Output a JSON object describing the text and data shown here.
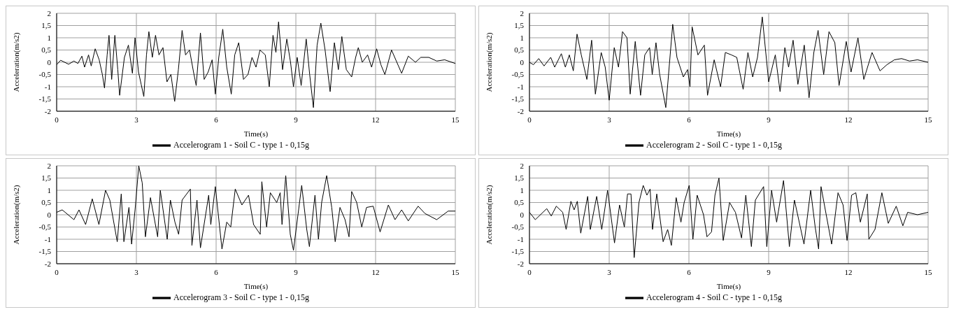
{
  "chart_data": [
    {
      "type": "line",
      "xlabel": "Time(s)",
      "ylabel": "Acceleration(m/s2)",
      "xlim": [
        0,
        15
      ],
      "xticks": [
        0,
        3,
        6,
        9,
        12,
        15
      ],
      "ylim": [
        -2,
        2
      ],
      "yticks": [
        {
          "value": -2,
          "label": "-2"
        },
        {
          "value": -1.5,
          "label": "-1,5"
        },
        {
          "value": -1,
          "label": "-1"
        },
        {
          "value": -0.5,
          "label": "-0,5"
        },
        {
          "value": 0,
          "label": "0"
        },
        {
          "value": 0.5,
          "label": "0,5"
        },
        {
          "value": 1,
          "label": "1"
        },
        {
          "value": 1.5,
          "label": "1,5"
        },
        {
          "value": 2,
          "label": "2"
        }
      ],
      "grid": true,
      "legend": "bottom",
      "marker": "none",
      "line_style": "solid",
      "series": [
        {
          "name": "Accelerogram 1 - Soil C - type 1 - 0,15g",
          "color": "#000000",
          "x": [
            0,
            0.15,
            0.45,
            0.65,
            0.8,
            0.95,
            1.05,
            1.2,
            1.3,
            1.45,
            1.6,
            1.72,
            1.8,
            1.9,
            1.97,
            2.07,
            2.19,
            2.3,
            2.37,
            2.55,
            2.7,
            2.85,
            2.95,
            3.08,
            3.18,
            3.28,
            3.38,
            3.47,
            3.6,
            3.72,
            3.85,
            4.0,
            4.15,
            4.3,
            4.44,
            4.58,
            4.72,
            4.85,
            5.0,
            5.15,
            5.25,
            5.41,
            5.55,
            5.7,
            5.85,
            5.97,
            6.1,
            6.25,
            6.4,
            6.57,
            6.7,
            6.85,
            7.03,
            7.2,
            7.35,
            7.5,
            7.65,
            7.85,
            8.0,
            8.14,
            8.25,
            8.35,
            8.5,
            8.66,
            8.8,
            8.91,
            9.05,
            9.2,
            9.39,
            9.52,
            9.66,
            9.8,
            9.94,
            10.1,
            10.2,
            10.29,
            10.45,
            10.6,
            10.73,
            10.9,
            11.1,
            11.25,
            11.35,
            11.5,
            11.7,
            11.85,
            12.04,
            12.2,
            12.35,
            12.6,
            12.8,
            12.98,
            13.23,
            13.5,
            13.7,
            14.0,
            14.3,
            14.6,
            15
          ],
          "values": [
            -0.1,
            0.08,
            -0.08,
            0.05,
            -0.05,
            0.25,
            -0.2,
            0.3,
            -0.15,
            0.55,
            0.1,
            -0.5,
            -1.05,
            0.3,
            1.1,
            -0.7,
            1.1,
            -0.3,
            -1.35,
            0.2,
            0.7,
            -0.45,
            1.0,
            -0.4,
            -0.9,
            -1.4,
            0.3,
            1.25,
            0.2,
            1.1,
            0.3,
            0.6,
            -0.8,
            -0.5,
            -1.6,
            -0.3,
            1.3,
            0.3,
            0.5,
            -0.4,
            -0.95,
            1.2,
            -0.7,
            -0.4,
            0.1,
            -1.3,
            0.2,
            1.35,
            -0.2,
            -1.3,
            0.3,
            0.8,
            -0.7,
            -0.5,
            0.2,
            -0.2,
            0.5,
            0.3,
            -1.0,
            1.1,
            0.4,
            1.65,
            -0.3,
            0.95,
            0.0,
            -1.0,
            0.2,
            -0.95,
            0.95,
            -0.5,
            -1.85,
            0.7,
            1.6,
            0.5,
            -0.4,
            -1.2,
            0.8,
            -0.3,
            1.05,
            -0.3,
            -0.6,
            0.2,
            0.6,
            0.0,
            0.3,
            -0.2,
            0.55,
            -0.1,
            -0.5,
            0.5,
            0.0,
            -0.45,
            0.25,
            0.0,
            0.2,
            0.2,
            0.05,
            0.1,
            -0.05
          ]
        }
      ]
    },
    {
      "type": "line",
      "xlabel": "Time(s)",
      "ylabel": "Acceleration(m/s2)",
      "xlim": [
        0,
        15
      ],
      "xticks": [
        0,
        3,
        6,
        9,
        12,
        15
      ],
      "ylim": [
        -2,
        2
      ],
      "yticks": [
        {
          "value": -2,
          "label": "-2"
        },
        {
          "value": -1.5,
          "label": "-1,5"
        },
        {
          "value": -1,
          "label": "-1"
        },
        {
          "value": -0.5,
          "label": "-0,5"
        },
        {
          "value": 0,
          "label": "0"
        },
        {
          "value": 0.5,
          "label": "0,5"
        },
        {
          "value": 1,
          "label": "1"
        },
        {
          "value": 1.5,
          "label": "1,5"
        },
        {
          "value": 2,
          "label": "2"
        }
      ],
      "grid": true,
      "legend": "bottom",
      "marker": "none",
      "line_style": "solid",
      "series": [
        {
          "name": "Accelerogram 2 - Soil C - type 1 - 0,15g",
          "color": "#000000",
          "x": [
            0,
            0.15,
            0.35,
            0.55,
            0.8,
            0.95,
            1.2,
            1.35,
            1.5,
            1.65,
            1.79,
            1.95,
            2.16,
            2.34,
            2.48,
            2.7,
            2.85,
            3.0,
            3.19,
            3.35,
            3.5,
            3.67,
            3.79,
            3.98,
            4.18,
            4.34,
            4.52,
            4.62,
            4.76,
            4.9,
            5.13,
            5.39,
            5.55,
            5.79,
            5.95,
            6.04,
            6.12,
            6.34,
            6.58,
            6.7,
            6.95,
            7.19,
            7.37,
            7.6,
            7.8,
            8.04,
            8.22,
            8.4,
            8.58,
            8.76,
            9.0,
            9.25,
            9.43,
            9.61,
            9.75,
            9.92,
            10.1,
            10.34,
            10.52,
            10.7,
            10.86,
            11.07,
            11.27,
            11.49,
            11.65,
            11.92,
            12.1,
            12.36,
            12.58,
            12.89,
            13.19,
            13.45,
            13.73,
            14.0,
            14.3,
            14.6,
            15
          ],
          "values": [
            0.0,
            -0.1,
            0.15,
            -0.15,
            0.2,
            -0.2,
            0.35,
            -0.2,
            0.3,
            -0.35,
            1.15,
            0.3,
            -0.7,
            0.9,
            -1.3,
            0.4,
            -0.2,
            -1.55,
            0.6,
            -0.2,
            1.25,
            1.0,
            -1.3,
            0.85,
            -1.35,
            0.3,
            0.6,
            -0.5,
            0.8,
            -0.5,
            -1.85,
            1.55,
            0.2,
            -0.6,
            -0.3,
            -1.0,
            1.45,
            0.3,
            0.7,
            -1.35,
            0.1,
            -1.0,
            0.4,
            0.3,
            0.2,
            -1.1,
            0.4,
            -0.6,
            0.2,
            1.85,
            -0.8,
            0.3,
            -1.2,
            0.6,
            -0.2,
            0.9,
            -0.9,
            0.7,
            -1.45,
            0.4,
            1.3,
            -0.5,
            1.25,
            0.8,
            -0.95,
            0.85,
            -0.4,
            1.0,
            -0.7,
            0.4,
            -0.35,
            -0.1,
            0.1,
            0.15,
            0.05,
            0.1,
            0.0
          ]
        }
      ]
    },
    {
      "type": "line",
      "xlabel": "Time(s)",
      "ylabel": "Acceleration(m/s2)",
      "xlim": [
        0,
        15
      ],
      "xticks": [
        0,
        3,
        6,
        9,
        12,
        15
      ],
      "ylim": [
        -2,
        2
      ],
      "yticks": [
        {
          "value": -2,
          "label": "-2"
        },
        {
          "value": -1.5,
          "label": "-1,5"
        },
        {
          "value": -1,
          "label": "-1"
        },
        {
          "value": -0.5,
          "label": "-0,5"
        },
        {
          "value": 0,
          "label": "0"
        },
        {
          "value": 0.5,
          "label": "0,5"
        },
        {
          "value": 1,
          "label": "1"
        },
        {
          "value": 1.5,
          "label": "1,5"
        },
        {
          "value": 2,
          "label": "2"
        }
      ],
      "grid": true,
      "legend": "bottom",
      "marker": "none",
      "line_style": "solid",
      "series": [
        {
          "name": "Accelerogram 3 - Soil C - type 1 - 0,15g",
          "color": "#000000",
          "x": [
            0,
            0.21,
            0.65,
            0.84,
            1.09,
            1.34,
            1.59,
            1.84,
            2.0,
            2.28,
            2.43,
            2.53,
            2.72,
            2.82,
            2.95,
            3.09,
            3.22,
            3.34,
            3.53,
            3.8,
            3.9,
            4.16,
            4.28,
            4.45,
            4.59,
            4.72,
            5.03,
            5.09,
            5.28,
            5.41,
            5.72,
            5.8,
            5.97,
            6.22,
            6.4,
            6.55,
            6.72,
            6.97,
            7.22,
            7.41,
            7.66,
            7.72,
            7.9,
            8.04,
            8.28,
            8.41,
            8.48,
            8.62,
            8.79,
            8.91,
            9.08,
            9.22,
            9.41,
            9.51,
            9.72,
            9.85,
            9.97,
            10.16,
            10.35,
            10.48,
            10.66,
            10.85,
            11.0,
            11.1,
            11.29,
            11.48,
            11.66,
            11.91,
            12.17,
            12.48,
            12.73,
            12.98,
            13.23,
            13.6,
            13.86,
            14.3,
            14.73,
            15
          ],
          "values": [
            0.1,
            0.2,
            -0.2,
            0.2,
            -0.4,
            0.65,
            -0.4,
            1.0,
            0.6,
            -1.1,
            0.85,
            -1.1,
            0.3,
            -1.2,
            0.2,
            2.0,
            1.3,
            -0.9,
            0.7,
            -0.9,
            1.0,
            -1.0,
            0.6,
            -0.3,
            -0.8,
            0.6,
            1.05,
            -1.25,
            0.6,
            -1.35,
            0.8,
            -0.4,
            1.15,
            -1.4,
            -0.3,
            -0.5,
            1.05,
            0.4,
            0.8,
            -0.4,
            -0.8,
            1.35,
            -0.5,
            0.9,
            0.5,
            0.9,
            -0.4,
            1.6,
            -0.8,
            -1.45,
            0.0,
            1.2,
            -0.6,
            -1.3,
            0.8,
            -1.0,
            0.5,
            1.6,
            0.3,
            -1.1,
            0.3,
            -0.2,
            -0.9,
            0.95,
            0.5,
            -0.5,
            0.3,
            0.35,
            -0.7,
            0.4,
            -0.2,
            0.2,
            -0.25,
            0.35,
            0.05,
            -0.2,
            0.15,
            0.15
          ]
        }
      ]
    },
    {
      "type": "line",
      "xlabel": "Time(s)",
      "ylabel": "Acceleration(m/s2)",
      "xlim": [
        0,
        15
      ],
      "xticks": [
        0,
        3,
        6,
        9,
        12,
        15
      ],
      "ylim": [
        -2,
        2
      ],
      "yticks": [
        {
          "value": -2,
          "label": "-2"
        },
        {
          "value": -1.5,
          "label": "-1,5"
        },
        {
          "value": -1,
          "label": "-1"
        },
        {
          "value": -0.5,
          "label": "-0,5"
        },
        {
          "value": 0,
          "label": "0"
        },
        {
          "value": 0.5,
          "label": "0,5"
        },
        {
          "value": 1,
          "label": "1"
        },
        {
          "value": 1.5,
          "label": "1,5"
        },
        {
          "value": 2,
          "label": "2"
        }
      ],
      "grid": true,
      "legend": "bottom",
      "marker": "none",
      "line_style": "solid",
      "series": [
        {
          "name": "Accelerogram 4 - Soil C - type 1 - 0,15g",
          "color": "#000000",
          "x": [
            0,
            0.22,
            0.65,
            0.82,
            1.01,
            1.25,
            1.38,
            1.56,
            1.68,
            1.8,
            1.93,
            2.19,
            2.29,
            2.53,
            2.72,
            2.94,
            3.2,
            3.39,
            3.57,
            3.69,
            3.82,
            3.94,
            4.12,
            4.28,
            4.42,
            4.54,
            4.63,
            4.79,
            5.03,
            5.2,
            5.34,
            5.52,
            5.7,
            5.82,
            6.01,
            6.15,
            6.31,
            6.55,
            6.68,
            6.85,
            6.98,
            7.13,
            7.29,
            7.53,
            7.75,
            7.98,
            8.14,
            8.35,
            8.5,
            8.81,
            8.93,
            9.11,
            9.3,
            9.56,
            9.78,
            9.97,
            10.33,
            10.58,
            10.75,
            10.88,
            10.97,
            11.37,
            11.61,
            11.8,
            11.95,
            12.12,
            12.28,
            12.45,
            12.71,
            12.77,
            13.0,
            13.26,
            13.5,
            13.8,
            14.05,
            14.23,
            14.6,
            15
          ],
          "values": [
            0.1,
            -0.2,
            0.25,
            -0.05,
            0.35,
            0.1,
            -0.6,
            0.55,
            0.2,
            0.55,
            -0.75,
            0.75,
            -0.6,
            0.75,
            -0.6,
            1.0,
            -1.15,
            0.4,
            -0.5,
            0.85,
            0.85,
            -1.75,
            0.5,
            1.2,
            0.8,
            1.05,
            -0.6,
            0.85,
            -1.1,
            -0.6,
            -1.25,
            0.7,
            -0.3,
            0.5,
            1.2,
            -1.0,
            0.8,
            0.0,
            -0.9,
            -0.7,
            0.8,
            1.5,
            -1.05,
            0.5,
            0.1,
            -0.95,
            0.8,
            -1.3,
            0.6,
            1.15,
            -1.3,
            1.0,
            -0.3,
            1.4,
            -1.3,
            0.6,
            -1.2,
            1.0,
            -0.5,
            -1.4,
            1.15,
            -1.2,
            0.9,
            0.4,
            -1.05,
            0.8,
            0.9,
            -0.3,
            0.85,
            -1.0,
            -0.6,
            0.9,
            -0.35,
            0.35,
            -0.45,
            0.1,
            0.0,
            0.1
          ]
        }
      ]
    }
  ]
}
